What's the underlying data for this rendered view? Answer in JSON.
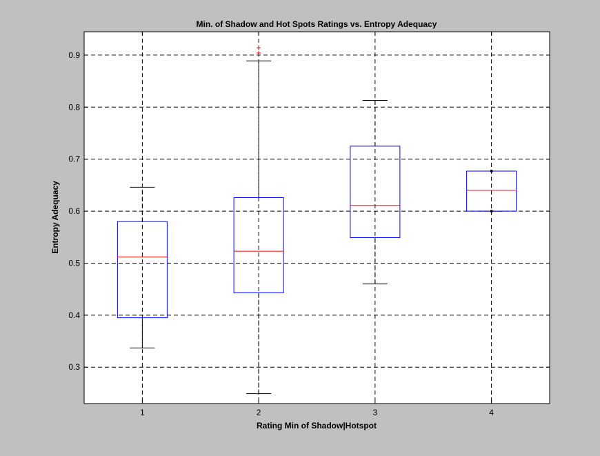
{
  "chart_data": {
    "type": "boxplot",
    "title": "Min. of Shadow and Hot Spots Ratings vs. Entropy Adequacy",
    "xlabel": "Rating Min of Shadow|Hotspot",
    "ylabel": "Entropy Adequacy",
    "categories": [
      "1",
      "2",
      "3",
      "4"
    ],
    "xlim": [
      0.5,
      4.5
    ],
    "ylim": [
      0.23,
      0.945
    ],
    "yticks": [
      0.3,
      0.4,
      0.5,
      0.6,
      0.7,
      0.8,
      0.9
    ],
    "ytick_labels": [
      "0.3",
      "0.4",
      "0.5",
      "0.6",
      "0.7",
      "0.8",
      "0.9"
    ],
    "grid": true,
    "boxes": [
      {
        "category": "1",
        "whisker_low": 0.337,
        "q1": 0.395,
        "median": 0.512,
        "q3": 0.58,
        "whisker_high": 0.646,
        "outliers": []
      },
      {
        "category": "2",
        "whisker_low": 0.249,
        "q1": 0.443,
        "median": 0.523,
        "q3": 0.626,
        "whisker_high": 0.889,
        "outliers": [
          0.904,
          0.914
        ]
      },
      {
        "category": "3",
        "whisker_low": 0.46,
        "q1": 0.549,
        "median": 0.611,
        "q3": 0.725,
        "whisker_high": 0.813,
        "outliers": []
      },
      {
        "category": "4",
        "whisker_low": 0.6,
        "q1": 0.6,
        "median": 0.64,
        "q3": 0.677,
        "whisker_high": 0.677,
        "outliers": []
      }
    ],
    "colors": {
      "background": "#c0c0c0",
      "axes": "#ffffff",
      "box": "#0000ff",
      "median": "#ff0000",
      "whisker": "#000000",
      "outlier": "#ff0000",
      "grid": "#000000"
    }
  }
}
